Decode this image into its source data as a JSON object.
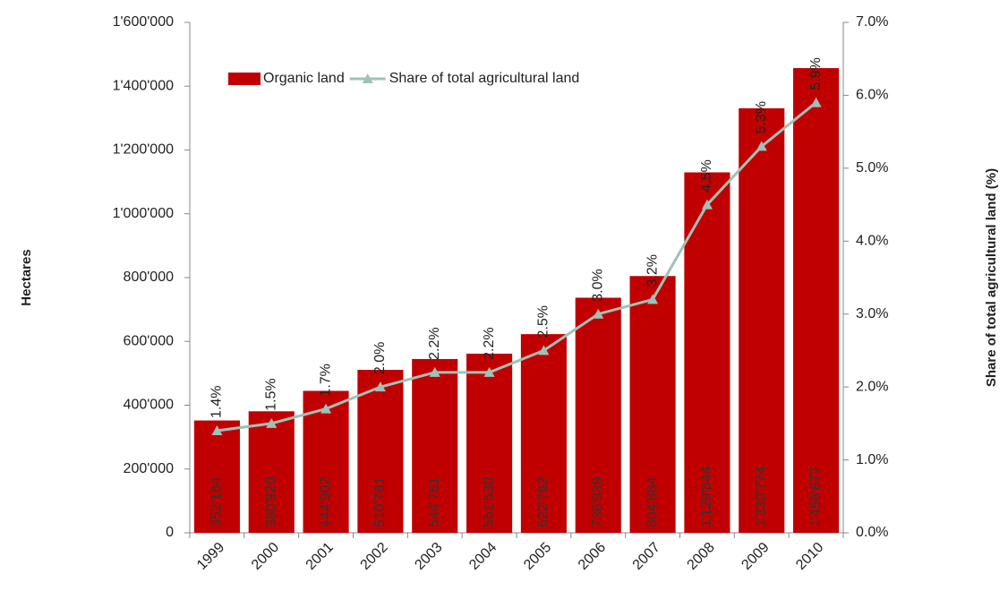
{
  "chart_data": {
    "type": "bar",
    "categories": [
      "1999",
      "2000",
      "2001",
      "2002",
      "2003",
      "2004",
      "2005",
      "2006",
      "2007",
      "2008",
      "2009",
      "2010"
    ],
    "series": [
      {
        "name": "Organic land",
        "type": "bar",
        "color": "#c00000",
        "values": [
          352164,
          380920,
          444902,
          510761,
          544761,
          561530,
          622762,
          736939,
          804884,
          1129844,
          1330774,
          1456672
        ],
        "value_labels": [
          "352'164",
          "380'920",
          "444'902",
          "510'761",
          "544'761",
          "561'530",
          "622'762",
          "736'939",
          "804'884",
          "1'129'844",
          "1'330'774",
          "1'456'672"
        ]
      },
      {
        "name": "Share of total agricultural land",
        "type": "line",
        "axis": "y2",
        "color": "#9fc2b8",
        "values": [
          1.4,
          1.5,
          1.7,
          2.0,
          2.2,
          2.2,
          2.5,
          3.0,
          3.2,
          4.5,
          5.3,
          5.9
        ],
        "value_labels": [
          "1.4%",
          "1.5%",
          "1.7%",
          "2.0%",
          "2.2%",
          "2.2%",
          "2.5%",
          "3.0%",
          "3.2%",
          "4.5%",
          "5.3%",
          "5.9%"
        ]
      }
    ],
    "y_label": "Hectares",
    "y2_label": "Share of total agricultural land (%)",
    "ylim": [
      0,
      1600000
    ],
    "yticks": [
      0,
      {
        "value": 200000,
        "label": "200'000"
      },
      {
        "value": 400000,
        "label": "400'000"
      },
      {
        "value": 600000,
        "label": "600'000"
      },
      {
        "value": 800000,
        "label": "800'000"
      },
      {
        "value": 1000000,
        "label": "1'000'000"
      },
      {
        "value": 1200000,
        "label": "1'200'000"
      },
      {
        "value": 1400000,
        "label": "1'400'000"
      },
      {
        "value": 1600000,
        "label": "1'600'000"
      }
    ],
    "y2lim": [
      0,
      7
    ],
    "y2ticks": [
      {
        "value": 0,
        "label": "0.0%"
      },
      {
        "value": 1,
        "label": "1.0%"
      },
      {
        "value": 2,
        "label": "2.0%"
      },
      {
        "value": 3,
        "label": "3.0%"
      },
      {
        "value": 4,
        "label": "4.0%"
      },
      {
        "value": 5,
        "label": "5.0%"
      },
      {
        "value": 6,
        "label": "6.0%"
      },
      {
        "value": 7,
        "label": "7.0%"
      }
    ],
    "legend": "top-left",
    "grid": false
  }
}
